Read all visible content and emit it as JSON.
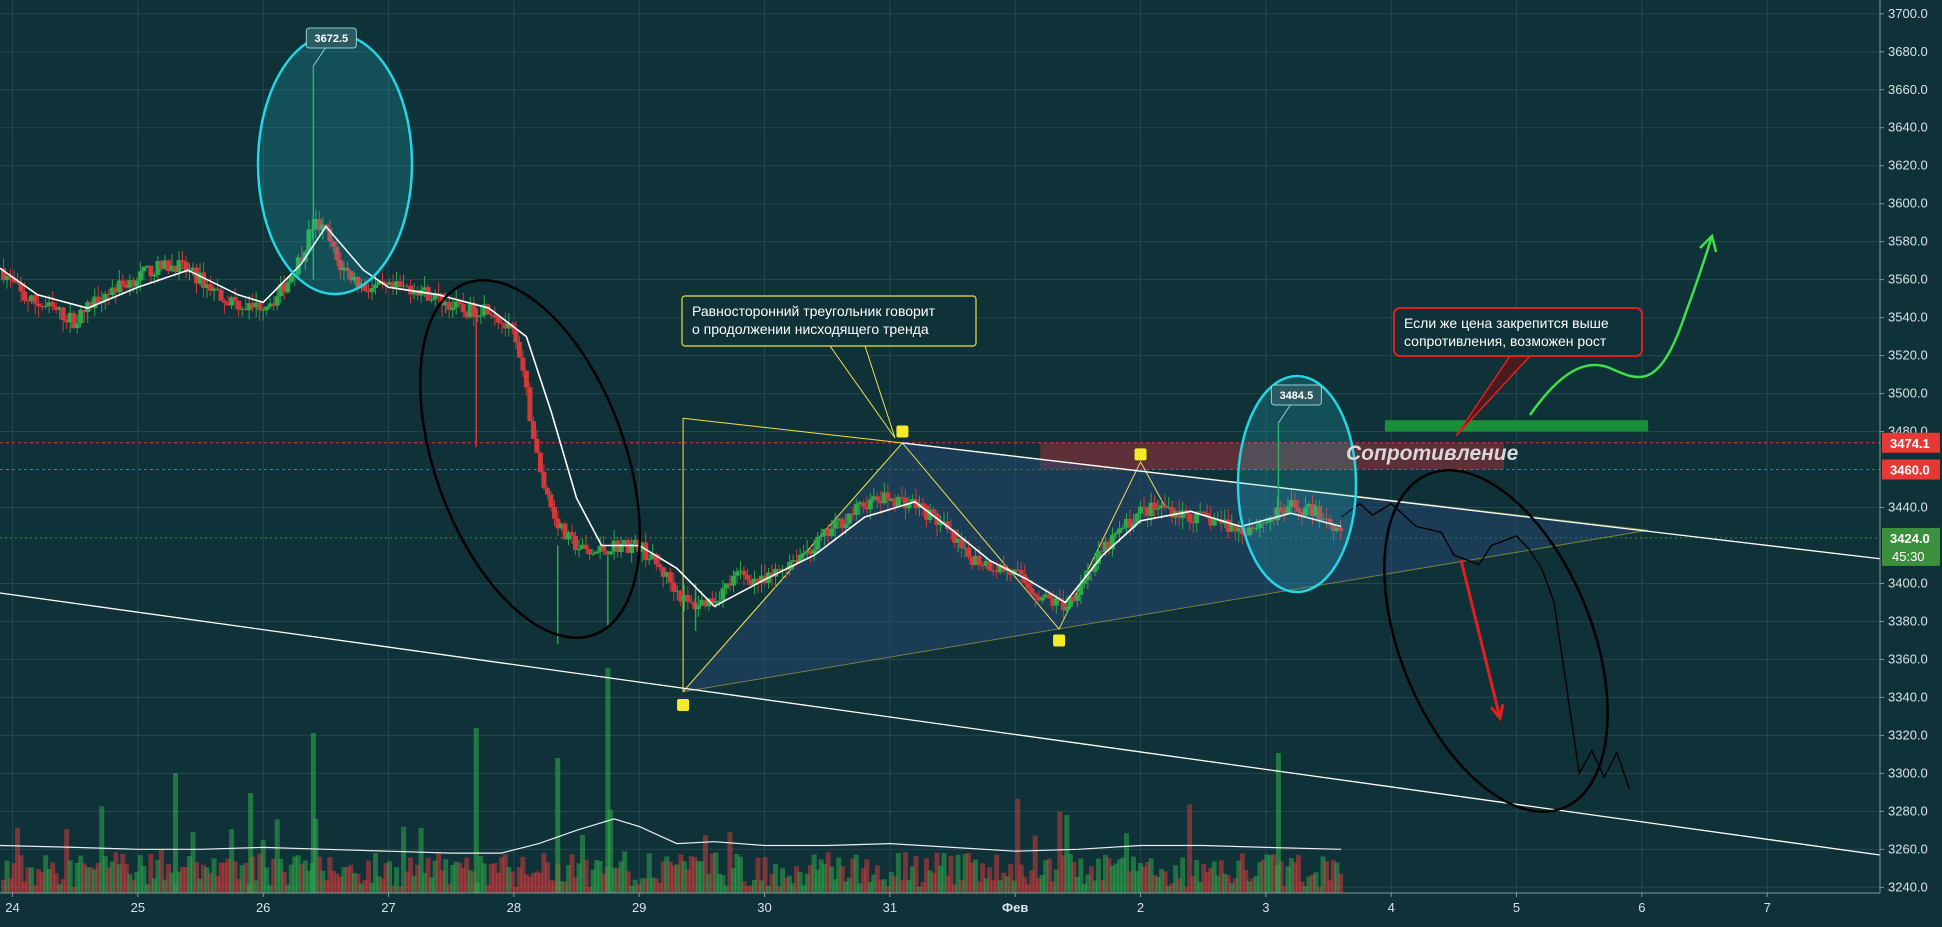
{
  "chart_data": {
    "type": "candlestick",
    "theme": {
      "background": "#0f3138",
      "grid": "#24474e",
      "up": "#2fa84a",
      "down": "#d23a3a",
      "ma_line": "#ffffff",
      "axis_text": "#d9e3e6",
      "cyan": "#22d6e6",
      "yellow": "#f0e04a",
      "resistance_zone": "#6b2f3a",
      "price_line_red": "#e53935",
      "price_line_green": "#3c8f3c"
    },
    "x_ticks": [
      {
        "label": "24",
        "day": 24
      },
      {
        "label": "25",
        "day": 25
      },
      {
        "label": "26",
        "day": 26
      },
      {
        "label": "27",
        "day": 27
      },
      {
        "label": "28",
        "day": 28
      },
      {
        "label": "29",
        "day": 29
      },
      {
        "label": "30",
        "day": 30
      },
      {
        "label": "31",
        "day": 31
      },
      {
        "label": "Фев",
        "day": 32
      },
      {
        "label": "2",
        "day": 33
      },
      {
        "label": "3",
        "day": 34
      },
      {
        "label": "4",
        "day": 35
      },
      {
        "label": "5",
        "day": 36
      },
      {
        "label": "6",
        "day": 37
      },
      {
        "label": "7",
        "day": 38
      }
    ],
    "y_ticks": [
      "3700.0",
      "3680.0",
      "3660.0",
      "3640.0",
      "3620.0",
      "3600.0",
      "3580.0",
      "3560.0",
      "3540.0",
      "3520.0",
      "3500.0",
      "3480.0",
      "3440.0",
      "3400.0",
      "3380.0",
      "3360.0",
      "3340.0",
      "3320.0",
      "3300.0",
      "3280.0",
      "3260.0",
      "3240.0"
    ],
    "ylim": [
      3237,
      3702
    ],
    "xlim": [
      23.9,
      38.9
    ],
    "price_path": [
      [
        23.9,
        3566
      ],
      [
        24.1,
        3550
      ],
      [
        24.3,
        3545
      ],
      [
        24.5,
        3538
      ],
      [
        24.7,
        3552
      ],
      [
        24.9,
        3558
      ],
      [
        25.1,
        3565
      ],
      [
        25.3,
        3568
      ],
      [
        25.5,
        3560
      ],
      [
        25.7,
        3550
      ],
      [
        25.9,
        3545
      ],
      [
        26.1,
        3550
      ],
      [
        26.2,
        3560
      ],
      [
        26.3,
        3572
      ],
      [
        26.4,
        3590
      ],
      [
        26.5,
        3585
      ],
      [
        26.6,
        3568
      ],
      [
        26.8,
        3556
      ],
      [
        27.0,
        3555
      ],
      [
        27.2,
        3556
      ],
      [
        27.4,
        3550
      ],
      [
        27.6,
        3543
      ],
      [
        27.8,
        3546
      ],
      [
        28.0,
        3530
      ],
      [
        28.1,
        3500
      ],
      [
        28.2,
        3460
      ],
      [
        28.3,
        3440
      ],
      [
        28.4,
        3425
      ],
      [
        28.6,
        3415
      ],
      [
        28.8,
        3420
      ],
      [
        29.0,
        3420
      ],
      [
        29.2,
        3405
      ],
      [
        29.4,
        3388
      ],
      [
        29.6,
        3392
      ],
      [
        29.8,
        3405
      ],
      [
        30.0,
        3400
      ],
      [
        30.2,
        3412
      ],
      [
        30.4,
        3420
      ],
      [
        30.6,
        3432
      ],
      [
        30.8,
        3442
      ],
      [
        31.0,
        3445
      ],
      [
        31.2,
        3442
      ],
      [
        31.4,
        3432
      ],
      [
        31.6,
        3415
      ],
      [
        31.8,
        3410
      ],
      [
        32.0,
        3405
      ],
      [
        32.2,
        3393
      ],
      [
        32.4,
        3388
      ],
      [
        32.6,
        3408
      ],
      [
        32.8,
        3425
      ],
      [
        33.0,
        3438
      ],
      [
        33.2,
        3440
      ],
      [
        33.4,
        3435
      ],
      [
        33.6,
        3433
      ],
      [
        33.8,
        3428
      ],
      [
        34.0,
        3433
      ],
      [
        34.2,
        3440
      ],
      [
        34.4,
        3438
      ],
      [
        34.6,
        3428
      ]
    ],
    "ma_path": [
      [
        23.9,
        3566
      ],
      [
        24.2,
        3552
      ],
      [
        24.6,
        3545
      ],
      [
        25.0,
        3556
      ],
      [
        25.4,
        3565
      ],
      [
        25.8,
        3552
      ],
      [
        26.0,
        3548
      ],
      [
        26.3,
        3568
      ],
      [
        26.5,
        3588
      ],
      [
        26.8,
        3565
      ],
      [
        27.0,
        3556
      ],
      [
        27.4,
        3552
      ],
      [
        27.8,
        3545
      ],
      [
        28.1,
        3530
      ],
      [
        28.3,
        3490
      ],
      [
        28.5,
        3445
      ],
      [
        28.7,
        3420
      ],
      [
        29.0,
        3420
      ],
      [
        29.3,
        3408
      ],
      [
        29.6,
        3388
      ],
      [
        30.0,
        3402
      ],
      [
        30.4,
        3415
      ],
      [
        30.8,
        3435
      ],
      [
        31.2,
        3443
      ],
      [
        31.5,
        3428
      ],
      [
        31.8,
        3412
      ],
      [
        32.1,
        3402
      ],
      [
        32.4,
        3390
      ],
      [
        32.7,
        3415
      ],
      [
        33.0,
        3433
      ],
      [
        33.4,
        3438
      ],
      [
        33.8,
        3430
      ],
      [
        34.2,
        3437
      ],
      [
        34.6,
        3430
      ]
    ],
    "volume_baseline_path": [
      [
        23.9,
        3262
      ],
      [
        24.5,
        3261
      ],
      [
        25.0,
        3260
      ],
      [
        25.5,
        3260
      ],
      [
        26.0,
        3261
      ],
      [
        26.5,
        3260
      ],
      [
        27.0,
        3259
      ],
      [
        27.5,
        3258
      ],
      [
        27.9,
        3258
      ],
      [
        28.2,
        3263
      ],
      [
        28.5,
        3270
      ],
      [
        28.8,
        3276
      ],
      [
        29.0,
        3272
      ],
      [
        29.3,
        3263
      ],
      [
        29.6,
        3264
      ],
      [
        30.0,
        3262
      ],
      [
        30.5,
        3262
      ],
      [
        31.0,
        3263
      ],
      [
        31.5,
        3261
      ],
      [
        32.0,
        3259
      ],
      [
        32.5,
        3260
      ],
      [
        33.0,
        3262
      ],
      [
        33.5,
        3262
      ],
      [
        34.0,
        3261
      ],
      [
        34.6,
        3260
      ]
    ],
    "projection_path": [
      [
        34.6,
        3435
      ],
      [
        34.75,
        3442
      ],
      [
        34.85,
        3436
      ],
      [
        35.0,
        3442
      ],
      [
        35.2,
        3430
      ],
      [
        35.4,
        3427
      ],
      [
        35.5,
        3415
      ],
      [
        35.7,
        3410
      ],
      [
        35.8,
        3420
      ],
      [
        36.0,
        3425
      ],
      [
        36.1,
        3418
      ],
      [
        36.2,
        3408
      ],
      [
        36.3,
        3390
      ],
      [
        36.4,
        3345
      ],
      [
        36.5,
        3300
      ],
      [
        36.6,
        3312
      ],
      [
        36.7,
        3298
      ],
      [
        36.8,
        3311
      ],
      [
        36.9,
        3292
      ]
    ],
    "price_labels": [
      {
        "value": 3474.1,
        "label": "3474.1",
        "color": "#e53935"
      },
      {
        "value": 3460.0,
        "label": "3460.0",
        "color": "#e53935"
      },
      {
        "value": 3424.0,
        "label": "3424.0",
        "sub": "45:30",
        "color": "#3c8f3c"
      }
    ],
    "peak_labels": [
      {
        "x": 26.4,
        "y": 3672.5,
        "label": "3672.5"
      },
      {
        "x": 34.1,
        "y": 3484.5,
        "label": "3484.5"
      }
    ],
    "annotations": {
      "triangle_note": "Равносторонний треугольник говорит о продолжении нисходящего тренда",
      "bullish_note": "Если же цена закрепится выше сопротивления, возможен рост",
      "resistance_label": "Сопротивление"
    },
    "grid": true
  }
}
